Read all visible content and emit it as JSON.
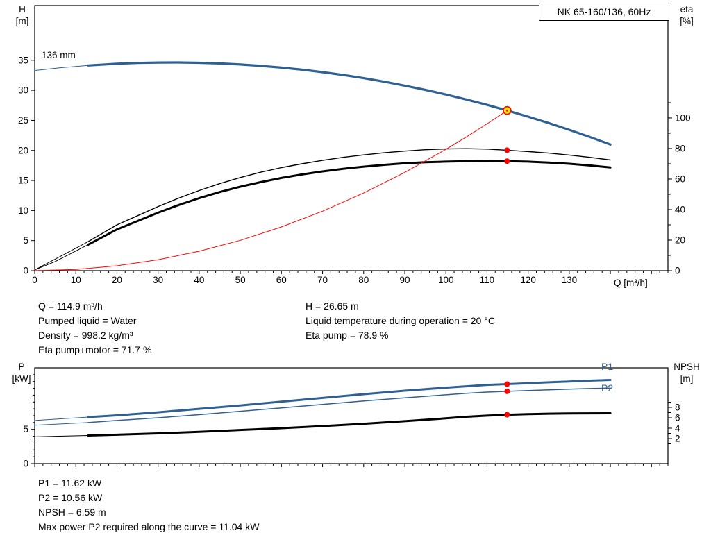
{
  "title_box": {
    "text": "NK 65-160/136, 60Hz"
  },
  "colors": {
    "curve_blue": "#2e6093",
    "curve_red": "#ff0000",
    "curve_black": "#000000",
    "duty_fill": "#ffe600"
  },
  "labels": {
    "h_axis_line1": "H",
    "h_axis_line2": "[m]",
    "eta_axis_line1": "eta",
    "eta_axis_line2": "[%]",
    "q_axis": "Q [m³/h]",
    "p_axis_line1": "P",
    "p_axis_line2": "[kW]",
    "npsh_axis_line1": "NPSH",
    "npsh_axis_line2": "[m]",
    "p1": "P1",
    "p2": "P2",
    "impeller": "136 mm"
  },
  "info_top": {
    "col1": [
      "Q = 114.9 m³/h",
      "Pumped liquid = Water",
      "Density = 998.2 kg/m³",
      "Eta pump+motor = 71.7 %"
    ],
    "col2": [
      "H = 26.65 m",
      "Liquid temperature during operation = 20 °C",
      "Eta pump = 78.9 %"
    ]
  },
  "info_bottom": {
    "lines": [
      "P1 = 11.62 kW",
      "P2 = 10.56 kW",
      "NPSH = 6.59 m",
      "Max power P2 required along the curve = 11.04 kW"
    ]
  },
  "chart_data": [
    {
      "id": "hq",
      "type": "line",
      "title": "NK 65-160/136, 60Hz",
      "xlabel": "Q [m³/h]",
      "ylabel_left": "H [m]",
      "ylabel_right": "eta [%]",
      "x": {
        "min": 0,
        "max": 154,
        "major_step": 10,
        "major_max": 150,
        "label_max": 130,
        "minor_step": 2
      },
      "left_axis": {
        "min": 0,
        "max": 44.1,
        "major": [
          0,
          5,
          10,
          15,
          20,
          25,
          30,
          35
        ],
        "minor": []
      },
      "right_axis": {
        "min": 0,
        "max": 173.6,
        "major": [
          0,
          20,
          40,
          60,
          80,
          100
        ],
        "minor": [
          10,
          30,
          50,
          70,
          90,
          110
        ]
      },
      "series": [
        {
          "name": "head-curve-lead",
          "axis": "left",
          "color": "#2e6093",
          "width": 1,
          "points": [
            [
              0,
              33.3
            ],
            [
              6,
              33.74
            ],
            [
              13,
              34.14
            ]
          ]
        },
        {
          "name": "head-curve-136mm",
          "axis": "left",
          "color": "#2e6093",
          "width": 3.2,
          "points": [
            [
              13,
              34.14
            ],
            [
              20,
              34.42
            ],
            [
              25,
              34.55
            ],
            [
              30,
              34.62
            ],
            [
              35,
              34.63
            ],
            [
              40,
              34.58
            ],
            [
              45,
              34.47
            ],
            [
              50,
              34.3
            ],
            [
              55,
              34.07
            ],
            [
              60,
              33.78
            ],
            [
              65,
              33.43
            ],
            [
              70,
              33.02
            ],
            [
              75,
              32.55
            ],
            [
              80,
              32.02
            ],
            [
              85,
              31.43
            ],
            [
              90,
              30.78
            ],
            [
              95,
              30.07
            ],
            [
              100,
              29.3
            ],
            [
              105,
              28.47
            ],
            [
              110,
              27.58
            ],
            [
              114.9,
              26.65
            ],
            [
              120,
              25.62
            ],
            [
              125,
              24.55
            ],
            [
              130,
              23.42
            ],
            [
              135,
              22.23
            ],
            [
              140,
              20.98
            ]
          ]
        },
        {
          "name": "eta-pump-curve-lead",
          "axis": "right",
          "color": "#000000",
          "width": 1,
          "points": [
            [
              0,
              0.5
            ],
            [
              6,
              9
            ],
            [
              13,
              19
            ]
          ]
        },
        {
          "name": "eta-pump-curve",
          "axis": "right",
          "color": "#000000",
          "width": 1.4,
          "points": [
            [
              13,
              19
            ],
            [
              20,
              30
            ],
            [
              25,
              36
            ],
            [
              30,
              42
            ],
            [
              35,
              47.5
            ],
            [
              40,
              52.5
            ],
            [
              45,
              57
            ],
            [
              50,
              61
            ],
            [
              55,
              64.5
            ],
            [
              60,
              67.5
            ],
            [
              65,
              70
            ],
            [
              70,
              72.2
            ],
            [
              75,
              74.2
            ],
            [
              80,
              75.8
            ],
            [
              85,
              77.2
            ],
            [
              90,
              78.3
            ],
            [
              95,
              79.2
            ],
            [
              100,
              79.7
            ],
            [
              105,
              79.9
            ],
            [
              110,
              79.6
            ],
            [
              114.9,
              78.9
            ],
            [
              120,
              78
            ],
            [
              125,
              77
            ],
            [
              130,
              75.7
            ],
            [
              135,
              74.2
            ],
            [
              140,
              72.5
            ]
          ]
        },
        {
          "name": "eta-pump-motor-curve-lead",
          "axis": "right",
          "color": "#000000",
          "width": 1,
          "points": [
            [
              0,
              0.5
            ],
            [
              5,
              6
            ],
            [
              13,
              17
            ]
          ]
        },
        {
          "name": "eta-pump-motor-curve",
          "axis": "right",
          "color": "#000000",
          "width": 3,
          "points": [
            [
              13,
              17
            ],
            [
              20,
              27
            ],
            [
              25,
              32.5
            ],
            [
              30,
              38
            ],
            [
              35,
              43
            ],
            [
              40,
              47.5
            ],
            [
              45,
              51.5
            ],
            [
              50,
              55
            ],
            [
              55,
              58
            ],
            [
              60,
              60.7
            ],
            [
              65,
              63
            ],
            [
              70,
              65
            ],
            [
              75,
              66.7
            ],
            [
              80,
              68.1
            ],
            [
              85,
              69.3
            ],
            [
              90,
              70.3
            ],
            [
              95,
              71
            ],
            [
              100,
              71.4
            ],
            [
              105,
              71.7
            ],
            [
              110,
              71.8
            ],
            [
              114.9,
              71.7
            ],
            [
              120,
              71.4
            ],
            [
              125,
              70.8
            ],
            [
              130,
              70
            ],
            [
              135,
              68.9
            ],
            [
              140,
              67.6
            ]
          ]
        },
        {
          "name": "system-curve",
          "axis": "left",
          "color": "#ff0000",
          "width": 1,
          "points": [
            [
              0,
              0
            ],
            [
              10,
              0.2
            ],
            [
              20,
              0.81
            ],
            [
              30,
              1.82
            ],
            [
              40,
              3.23
            ],
            [
              50,
              5.05
            ],
            [
              60,
              7.27
            ],
            [
              70,
              9.89
            ],
            [
              80,
              12.92
            ],
            [
              90,
              16.35
            ],
            [
              100,
              20.18
            ],
            [
              105,
              22.25
            ],
            [
              110,
              24.42
            ],
            [
              114.9,
              26.65
            ]
          ]
        }
      ],
      "markers": [
        {
          "name": "eta-pump-duty-dot",
          "axis": "right",
          "q": 114.9,
          "v": 78.9,
          "r": 4,
          "fill": "#ff0000"
        },
        {
          "name": "eta-pump-motor-duty-dot",
          "axis": "right",
          "q": 114.9,
          "v": 71.7,
          "r": 4,
          "fill": "#ff0000"
        },
        {
          "name": "duty-point",
          "axis": "left",
          "q": 114.9,
          "v": 26.65,
          "r": 5.5,
          "fill": "#ffe600",
          "stroke": "#ff0000",
          "sw": 1.6
        },
        {
          "name": "duty-point-center",
          "axis": "left",
          "q": 114.9,
          "v": 26.65,
          "r": 1.5,
          "fill": "#ff0000"
        }
      ]
    },
    {
      "id": "power",
      "type": "line",
      "title": "",
      "xlabel": "",
      "ylabel_left": "P [kW]",
      "ylabel_right": "NPSH [m]",
      "x": {
        "min": 0,
        "max": 154,
        "major_step": 10,
        "major_max": 150,
        "label_max": -1,
        "minor_step": 2
      },
      "left_axis": {
        "min": 0,
        "max": 14,
        "major": [
          0,
          5
        ],
        "minor": [
          1,
          2,
          3,
          4,
          6,
          7,
          8,
          9,
          10,
          11,
          12,
          13
        ]
      },
      "right_axis": {
        "min": -2.8,
        "max": 15.6,
        "major": [
          2,
          4,
          6,
          8
        ],
        "minor": [
          1,
          3,
          5,
          7,
          9
        ]
      },
      "series": [
        {
          "name": "p1-curve-lead",
          "axis": "left",
          "color": "#2e6093",
          "width": 1,
          "points": [
            [
              0,
              6.3
            ],
            [
              13,
              6.8
            ]
          ]
        },
        {
          "name": "p1-curve",
          "axis": "left",
          "color": "#2e6093",
          "width": 3,
          "points": [
            [
              13,
              6.8
            ],
            [
              20,
              7.05
            ],
            [
              30,
              7.5
            ],
            [
              40,
              8.0
            ],
            [
              50,
              8.5
            ],
            [
              60,
              9.05
            ],
            [
              70,
              9.6
            ],
            [
              80,
              10.15
            ],
            [
              90,
              10.65
            ],
            [
              100,
              11.1
            ],
            [
              105,
              11.3
            ],
            [
              110,
              11.5
            ],
            [
              114.9,
              11.62
            ],
            [
              120,
              11.75
            ],
            [
              125,
              11.88
            ],
            [
              130,
              12.0
            ],
            [
              135,
              12.12
            ],
            [
              140,
              12.22
            ]
          ]
        },
        {
          "name": "p2-curve-lead",
          "axis": "left",
          "color": "#2e6093",
          "width": 1,
          "points": [
            [
              0,
              5.6
            ],
            [
              13,
              6.0
            ]
          ]
        },
        {
          "name": "p2-curve",
          "axis": "left",
          "color": "#2e6093",
          "width": 1.5,
          "points": [
            [
              13,
              6.0
            ],
            [
              20,
              6.3
            ],
            [
              30,
              6.7
            ],
            [
              40,
              7.15
            ],
            [
              50,
              7.65
            ],
            [
              60,
              8.15
            ],
            [
              70,
              8.65
            ],
            [
              80,
              9.15
            ],
            [
              90,
              9.62
            ],
            [
              100,
              10.05
            ],
            [
              105,
              10.28
            ],
            [
              110,
              10.45
            ],
            [
              114.9,
              10.56
            ],
            [
              120,
              10.67
            ],
            [
              125,
              10.78
            ],
            [
              130,
              10.88
            ],
            [
              135,
              10.97
            ],
            [
              140,
              11.04
            ]
          ]
        },
        {
          "name": "npsh-curve-lead",
          "axis": "right",
          "color": "#000000",
          "width": 1,
          "points": [
            [
              0,
              2.35
            ],
            [
              13,
              2.6
            ]
          ]
        },
        {
          "name": "npsh-curve",
          "axis": "right",
          "color": "#000000",
          "width": 3,
          "points": [
            [
              13,
              2.6
            ],
            [
              20,
              2.75
            ],
            [
              30,
              3.0
            ],
            [
              40,
              3.3
            ],
            [
              50,
              3.65
            ],
            [
              60,
              4.0
            ],
            [
              70,
              4.4
            ],
            [
              80,
              4.85
            ],
            [
              90,
              5.35
            ],
            [
              100,
              5.9
            ],
            [
              105,
              6.2
            ],
            [
              110,
              6.42
            ],
            [
              114.9,
              6.59
            ],
            [
              120,
              6.7
            ],
            [
              125,
              6.78
            ],
            [
              130,
              6.83
            ],
            [
              135,
              6.85
            ],
            [
              140,
              6.86
            ]
          ]
        }
      ],
      "markers": [
        {
          "name": "p1-duty-dot",
          "axis": "left",
          "q": 114.9,
          "v": 11.62,
          "r": 4,
          "fill": "#ff0000"
        },
        {
          "name": "p2-duty-dot",
          "axis": "left",
          "q": 114.9,
          "v": 10.56,
          "r": 4,
          "fill": "#ff0000"
        },
        {
          "name": "npsh-duty-dot",
          "axis": "right",
          "q": 114.9,
          "v": 6.59,
          "r": 4,
          "fill": "#ff0000"
        }
      ]
    }
  ]
}
